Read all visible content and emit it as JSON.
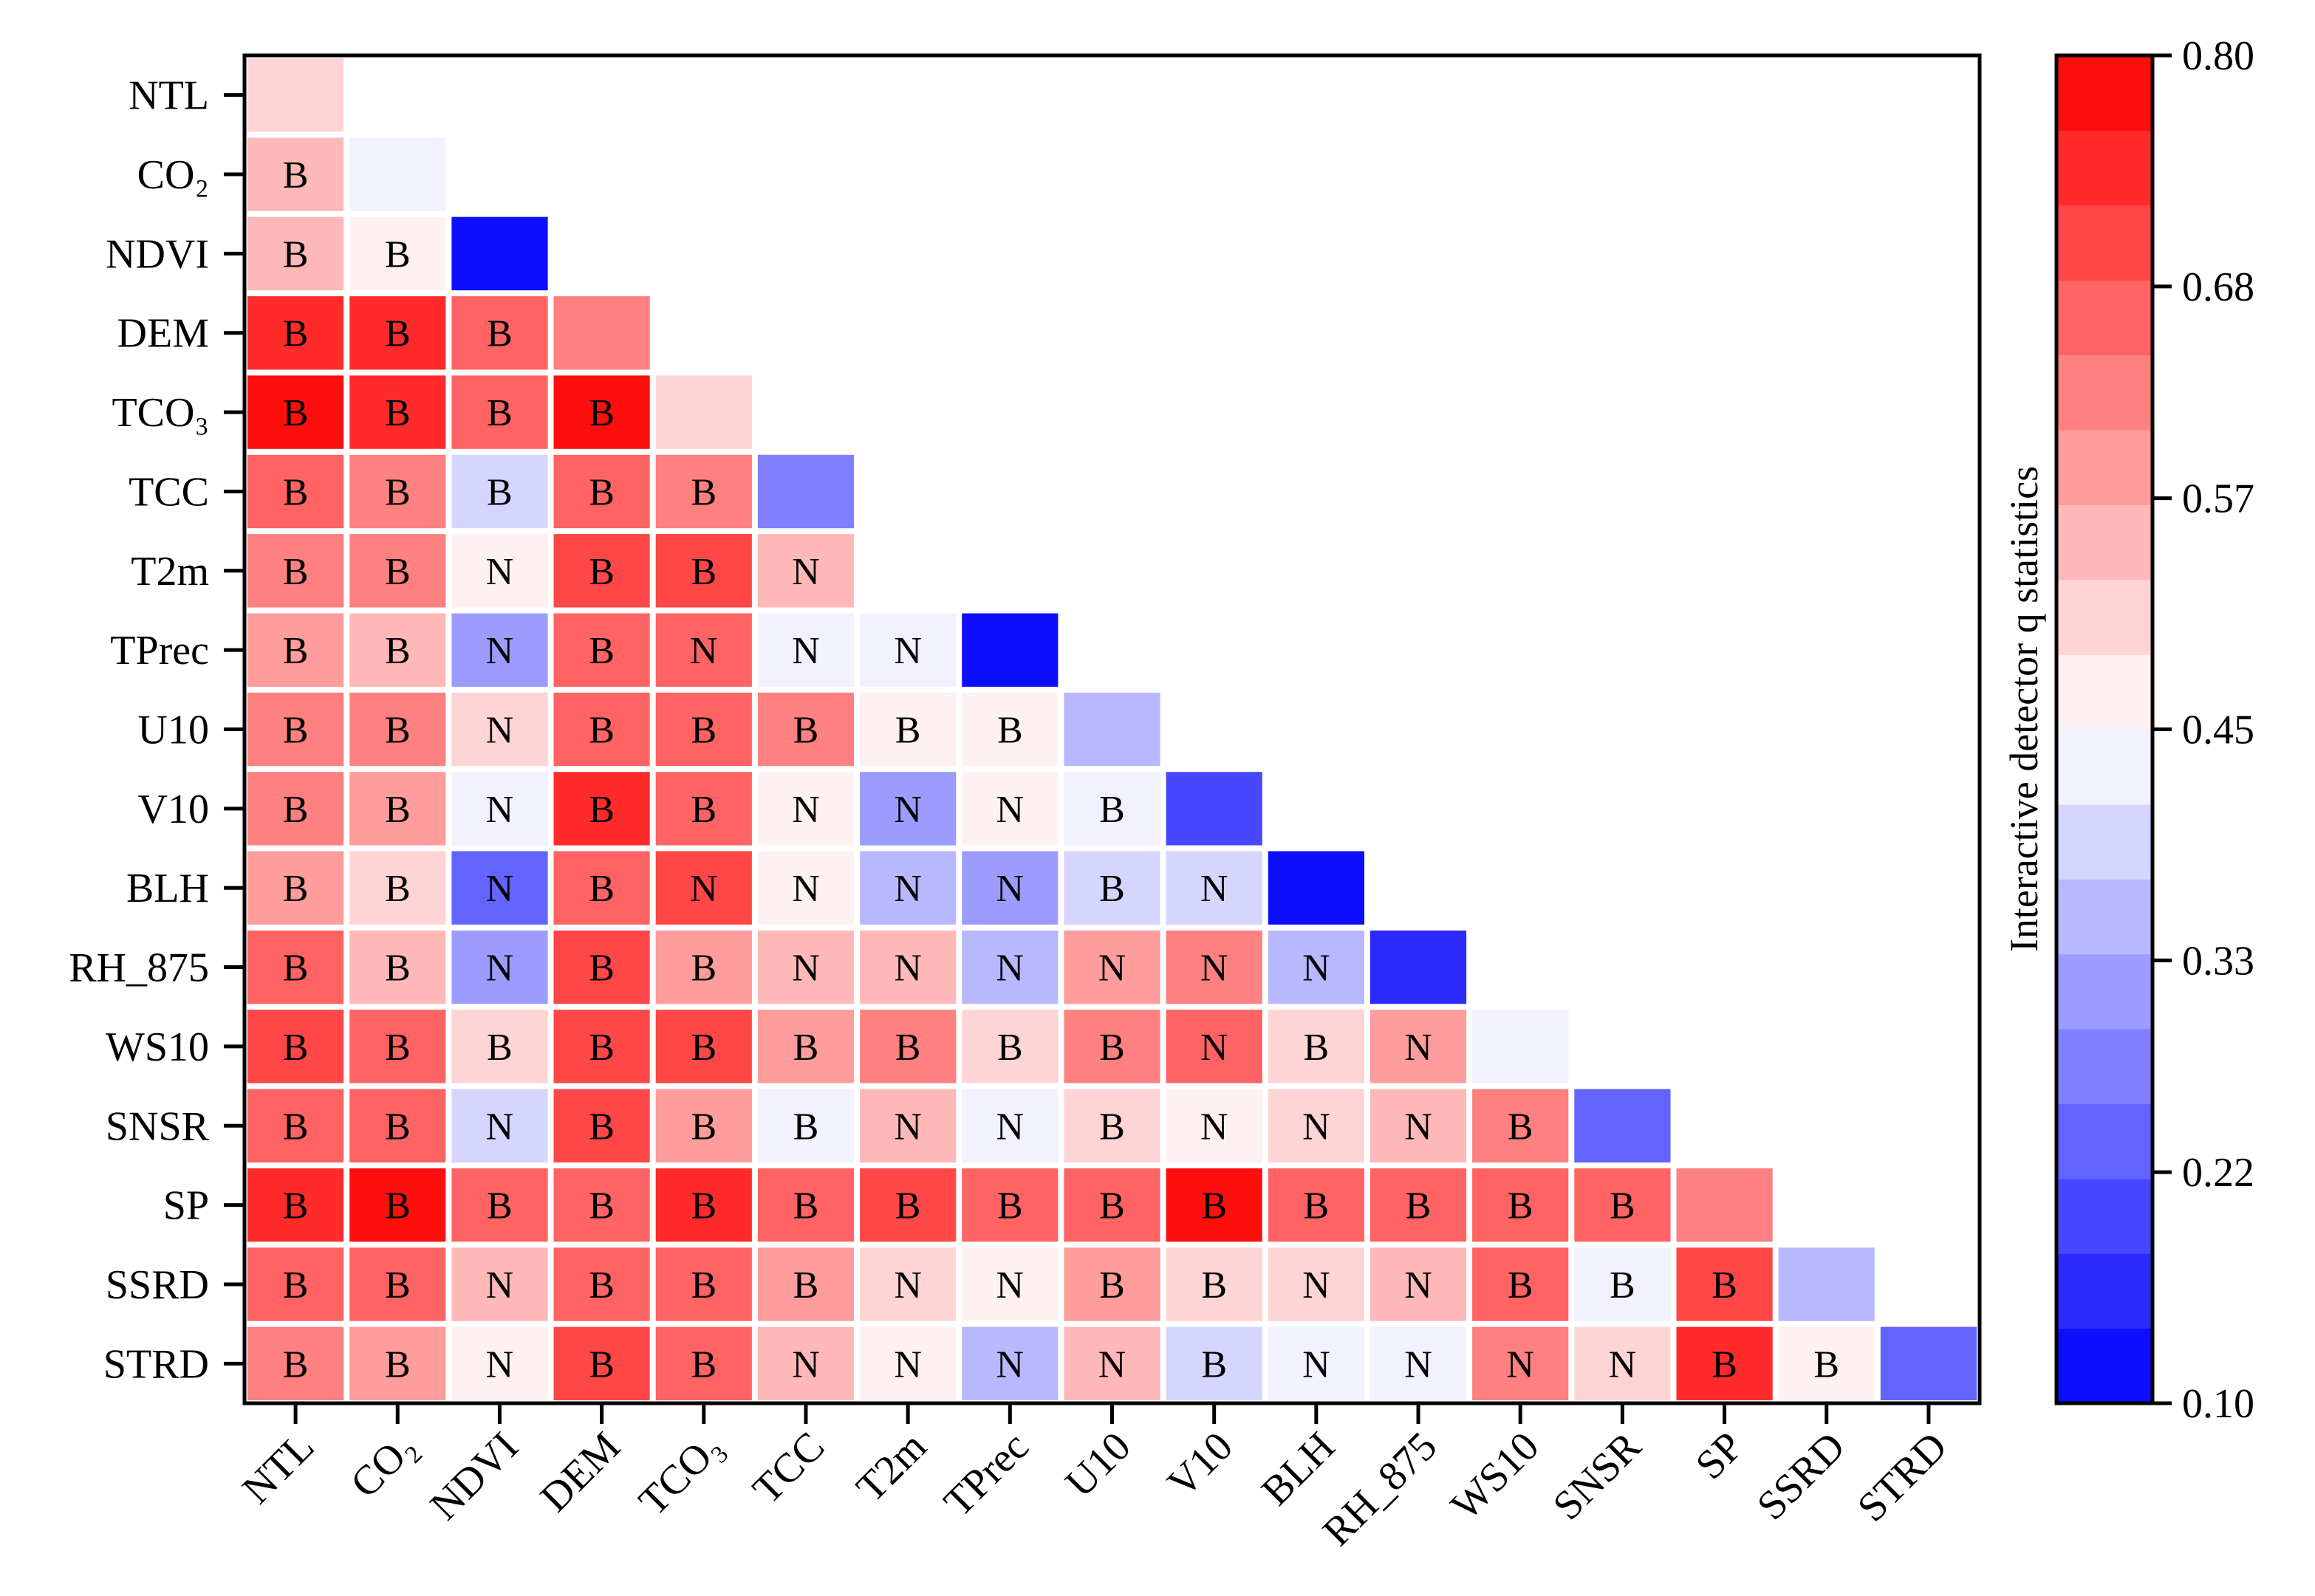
{
  "chart_data": {
    "type": "heatmap",
    "title": "",
    "variables": [
      "NTL",
      "CO₂",
      "NDVI",
      "DEM",
      "TCO₃",
      "TCC",
      "T2m",
      "TPrec",
      "U10",
      "V10",
      "BLH",
      "RH_875",
      "WS10",
      "SNSR",
      "SP",
      "SSRD",
      "STRD"
    ],
    "rows": [
      {
        "values": [
          0.49
        ],
        "labels": [
          ""
        ]
      },
      {
        "values": [
          0.55,
          0.44
        ],
        "labels": [
          "B",
          ""
        ]
      },
      {
        "values": [
          0.55,
          0.47,
          0.12
        ],
        "labels": [
          "B",
          "B",
          ""
        ]
      },
      {
        "values": [
          0.74,
          0.74,
          0.66,
          0.62
        ],
        "labels": [
          "B",
          "B",
          "B",
          ""
        ]
      },
      {
        "values": [
          0.77,
          0.74,
          0.68,
          0.78,
          0.5
        ],
        "labels": [
          "B",
          "B",
          "B",
          "B",
          ""
        ]
      },
      {
        "values": [
          0.65,
          0.63,
          0.4,
          0.66,
          0.63,
          0.28
        ],
        "labels": [
          "B",
          "B",
          "B",
          "B",
          "B",
          ""
        ]
      },
      {
        "values": [
          0.62,
          0.61,
          0.47,
          0.7,
          0.7,
          0.54
        ],
        "labels": [
          "B",
          "B",
          "N",
          "B",
          "B",
          "N"
        ]
      },
      {
        "values": [
          0.58,
          0.55,
          0.33,
          0.68,
          0.65,
          0.44,
          0.44,
          0.1
        ],
        "labels": [
          "B",
          "B",
          "N",
          "B",
          "N",
          "N",
          "N",
          ""
        ]
      },
      {
        "values": [
          0.64,
          0.61,
          0.52,
          0.68,
          0.66,
          0.62,
          0.47,
          0.47,
          0.37
        ],
        "labels": [
          "B",
          "B",
          "N",
          "B",
          "B",
          "B",
          "B",
          "B",
          ""
        ]
      },
      {
        "values": [
          0.62,
          0.57,
          0.44,
          0.74,
          0.65,
          0.47,
          0.3,
          0.47,
          0.44,
          0.2
        ],
        "labels": [
          "B",
          "B",
          "N",
          "B",
          "B",
          "N",
          "N",
          "N",
          "B",
          ""
        ]
      },
      {
        "values": [
          0.57,
          0.5,
          0.25,
          0.65,
          0.7,
          0.47,
          0.34,
          0.3,
          0.39,
          0.41,
          0.12
        ],
        "labels": [
          "B",
          "B",
          "N",
          "B",
          "N",
          "N",
          "N",
          "N",
          "B",
          "N",
          ""
        ]
      },
      {
        "values": [
          0.66,
          0.55,
          0.3,
          0.7,
          0.6,
          0.54,
          0.55,
          0.35,
          0.6,
          0.62,
          0.35,
          0.15
        ],
        "labels": [
          "B",
          "B",
          "N",
          "B",
          "B",
          "N",
          "N",
          "N",
          "N",
          "N",
          "N",
          ""
        ]
      },
      {
        "values": [
          0.7,
          0.66,
          0.52,
          0.7,
          0.7,
          0.6,
          0.62,
          0.52,
          0.63,
          0.68,
          0.52,
          0.57,
          0.45
        ],
        "labels": [
          "B",
          "B",
          "B",
          "B",
          "B",
          "B",
          "B",
          "B",
          "B",
          "N",
          "B",
          "N",
          ""
        ]
      },
      {
        "values": [
          0.68,
          0.66,
          0.4,
          0.7,
          0.57,
          0.44,
          0.54,
          0.44,
          0.52,
          0.47,
          0.5,
          0.55,
          0.63,
          0.25
        ],
        "labels": [
          "B",
          "B",
          "N",
          "B",
          "B",
          "B",
          "N",
          "N",
          "B",
          "N",
          "N",
          "N",
          "B",
          ""
        ]
      },
      {
        "values": [
          0.76,
          0.78,
          0.68,
          0.66,
          0.76,
          0.65,
          0.72,
          0.68,
          0.68,
          0.77,
          0.66,
          0.68,
          0.68,
          0.68,
          0.62
        ],
        "labels": [
          "B",
          "B",
          "B",
          "B",
          "B",
          "B",
          "B",
          "B",
          "B",
          "B",
          "B",
          "B",
          "B",
          "B",
          ""
        ]
      },
      {
        "values": [
          0.68,
          0.66,
          0.55,
          0.68,
          0.65,
          0.6,
          0.52,
          0.47,
          0.57,
          0.5,
          0.52,
          0.54,
          0.66,
          0.44,
          0.7,
          0.37
        ],
        "labels": [
          "B",
          "B",
          "N",
          "B",
          "B",
          "B",
          "N",
          "N",
          "B",
          "B",
          "N",
          "N",
          "B",
          "B",
          "B",
          ""
        ]
      },
      {
        "values": [
          0.64,
          0.6,
          0.47,
          0.7,
          0.68,
          0.55,
          0.47,
          0.36,
          0.55,
          0.39,
          0.45,
          0.44,
          0.62,
          0.52,
          0.73,
          0.47,
          0.22
        ],
        "labels": [
          "B",
          "B",
          "N",
          "B",
          "B",
          "N",
          "N",
          "N",
          "N",
          "B",
          "N",
          "N",
          "N",
          "N",
          "B",
          "B",
          ""
        ]
      }
    ],
    "colorbar": {
      "label": "Interactive detector q statistics",
      "min": 0.1,
      "max": 0.8,
      "levels": 18,
      "ticks": [
        "0.10",
        "0.22",
        "0.33",
        "0.45",
        "0.57",
        "0.68",
        "0.80"
      ],
      "low_color": "#0000ff",
      "mid_color": "#ffffff",
      "high_color": "#ff0000"
    }
  }
}
